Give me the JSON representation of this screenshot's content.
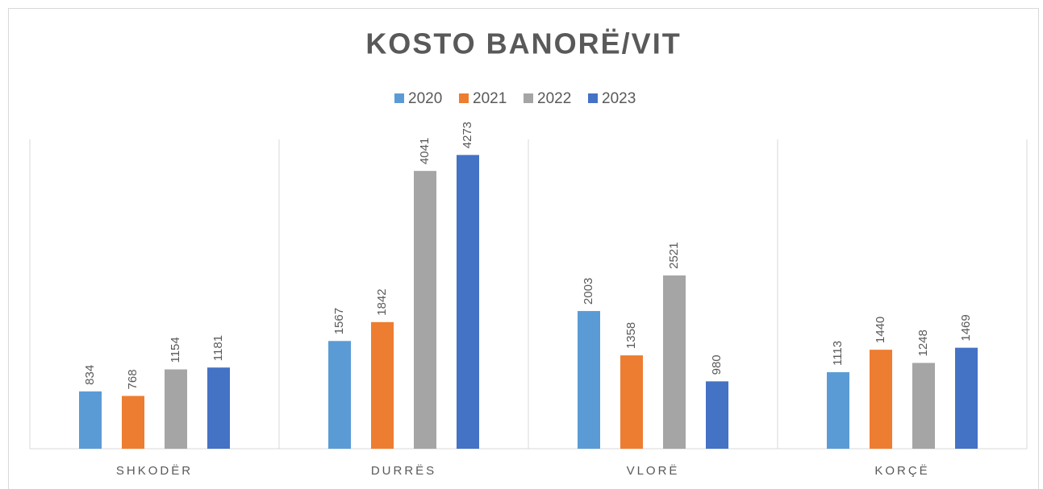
{
  "chart_data": {
    "type": "bar",
    "title": "KOSTO BANORË/VIT",
    "categories": [
      "SHKODËR",
      "DURRËS",
      "VLORË",
      "KORÇË"
    ],
    "series": [
      {
        "name": "2020",
        "color": "#5b9bd5",
        "values": [
          834,
          1567,
          2003,
          1113
        ]
      },
      {
        "name": "2021",
        "color": "#ed7d31",
        "values": [
          768,
          1842,
          1358,
          1440
        ]
      },
      {
        "name": "2022",
        "color": "#a5a5a5",
        "values": [
          1154,
          4041,
          2521,
          1248
        ]
      },
      {
        "name": "2023",
        "color": "#4472c4",
        "values": [
          1181,
          4273,
          980,
          1469
        ]
      }
    ],
    "ylim": [
      0,
      4500
    ],
    "legend": "top"
  }
}
